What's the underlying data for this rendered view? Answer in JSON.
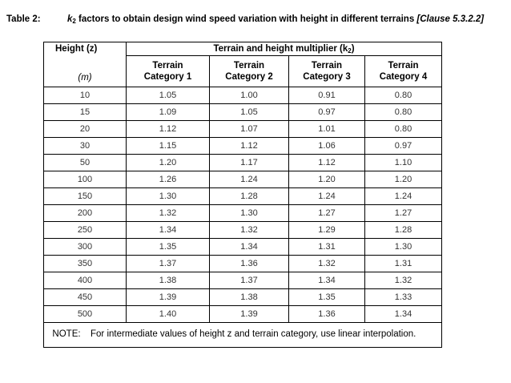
{
  "table": {
    "label": "Table 2:",
    "caption_prefix": "k",
    "caption_sub": "2",
    "caption_text": " factors to obtain design wind speed variation with height in different terrains ",
    "clause": "[Clause 5.3.2.2]",
    "header_height": "Height (z)",
    "header_multiplier_prefix": "Terrain and height multiplier (k",
    "header_multiplier_sub": "2",
    "header_multiplier_suffix": ")",
    "unit": "(m)",
    "categories": [
      {
        "line1": "Terrain",
        "line2": "Category 1"
      },
      {
        "line1": "Terrain",
        "line2": "Category 2"
      },
      {
        "line1": "Terrain",
        "line2": "Category 3"
      },
      {
        "line1": "Terrain",
        "line2": "Category 4"
      }
    ],
    "rows": [
      {
        "h": "10",
        "c1": "1.05",
        "c2": "1.00",
        "c3": "0.91",
        "c4": "0.80"
      },
      {
        "h": "15",
        "c1": "1.09",
        "c2": "1.05",
        "c3": "0.97",
        "c4": "0.80"
      },
      {
        "h": "20",
        "c1": "1.12",
        "c2": "1.07",
        "c3": "1.01",
        "c4": "0.80"
      },
      {
        "h": "30",
        "c1": "1.15",
        "c2": "1.12",
        "c3": "1.06",
        "c4": "0.97"
      },
      {
        "h": "50",
        "c1": "1.20",
        "c2": "1.17",
        "c3": "1.12",
        "c4": "1.10"
      },
      {
        "h": "100",
        "c1": "1.26",
        "c2": "1.24",
        "c3": "1.20",
        "c4": "1.20"
      },
      {
        "h": "150",
        "c1": "1.30",
        "c2": "1.28",
        "c3": "1.24",
        "c4": "1.24"
      },
      {
        "h": "200",
        "c1": "1.32",
        "c2": "1.30",
        "c3": "1.27",
        "c4": "1.27"
      },
      {
        "h": "250",
        "c1": "1.34",
        "c2": "1.32",
        "c3": "1.29",
        "c4": "1.28"
      },
      {
        "h": "300",
        "c1": "1.35",
        "c2": "1.34",
        "c3": "1.31",
        "c4": "1.30"
      },
      {
        "h": "350",
        "c1": "1.37",
        "c2": "1.36",
        "c3": "1.32",
        "c4": "1.31"
      },
      {
        "h": "400",
        "c1": "1.38",
        "c2": "1.37",
        "c3": "1.34",
        "c4": "1.32"
      },
      {
        "h": "450",
        "c1": "1.39",
        "c2": "1.38",
        "c3": "1.35",
        "c4": "1.33"
      },
      {
        "h": "500",
        "c1": "1.40",
        "c2": "1.39",
        "c3": "1.36",
        "c4": "1.34"
      }
    ],
    "note_label": "NOTE:",
    "note_text": "For intermediate values of height z and terrain category, use linear interpolation."
  }
}
